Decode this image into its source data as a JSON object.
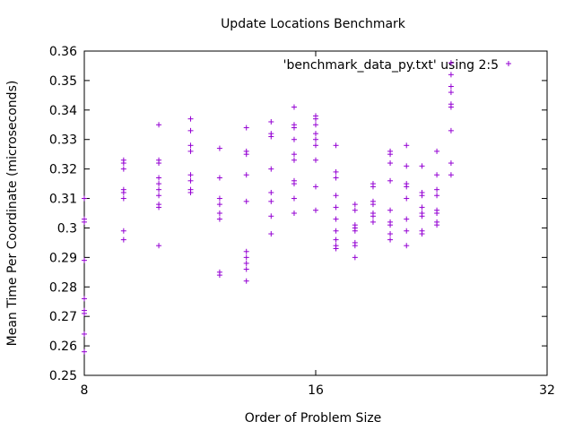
{
  "chart_data": {
    "type": "scatter",
    "title": "Update Locations Benchmark",
    "xlabel": "Order of Problem Size",
    "ylabel": "Mean Time Per Coordinate (microseconds)",
    "x_scale": "log2",
    "xlim": [
      8,
      32
    ],
    "ylim": [
      0.25,
      0.36
    ],
    "x_ticks": [
      8,
      16,
      32
    ],
    "x_tick_labels": [
      "8",
      "16",
      "32"
    ],
    "y_ticks": [
      0.25,
      0.26,
      0.27,
      0.28,
      0.29,
      0.3,
      0.31,
      0.32,
      0.33,
      0.34,
      0.35,
      0.36
    ],
    "y_tick_labels": [
      "0.25",
      "0.26",
      "0.27",
      "0.28",
      "0.29",
      "0.3",
      "0.31",
      "0.32",
      "0.33",
      "0.34",
      "0.35",
      "0.36"
    ],
    "grid": false,
    "legend_position": "top-right",
    "series": [
      {
        "name": "'benchmark_data_py.txt' using 2:5",
        "color": "#9400d3",
        "marker": "plus",
        "points": [
          [
            8,
            0.31
          ],
          [
            8,
            0.303
          ],
          [
            8,
            0.302
          ],
          [
            8,
            0.289
          ],
          [
            8,
            0.276
          ],
          [
            8,
            0.272
          ],
          [
            8,
            0.271
          ],
          [
            8,
            0.264
          ],
          [
            8,
            0.258
          ],
          [
            9,
            0.323
          ],
          [
            9,
            0.322
          ],
          [
            9,
            0.32
          ],
          [
            9,
            0.313
          ],
          [
            9,
            0.312
          ],
          [
            9,
            0.31
          ],
          [
            9,
            0.299
          ],
          [
            9,
            0.296
          ],
          [
            10,
            0.335
          ],
          [
            10,
            0.323
          ],
          [
            10,
            0.322
          ],
          [
            10,
            0.317
          ],
          [
            10,
            0.315
          ],
          [
            10,
            0.313
          ],
          [
            10,
            0.311
          ],
          [
            10,
            0.308
          ],
          [
            10,
            0.307
          ],
          [
            10,
            0.294
          ],
          [
            11,
            0.337
          ],
          [
            11,
            0.333
          ],
          [
            11,
            0.328
          ],
          [
            11,
            0.326
          ],
          [
            11,
            0.318
          ],
          [
            11,
            0.316
          ],
          [
            11,
            0.313
          ],
          [
            11,
            0.312
          ],
          [
            12,
            0.327
          ],
          [
            12,
            0.317
          ],
          [
            12,
            0.31
          ],
          [
            12,
            0.308
          ],
          [
            12,
            0.305
          ],
          [
            12,
            0.303
          ],
          [
            12,
            0.285
          ],
          [
            12,
            0.284
          ],
          [
            13,
            0.334
          ],
          [
            13,
            0.326
          ],
          [
            13,
            0.325
          ],
          [
            13,
            0.318
          ],
          [
            13,
            0.309
          ],
          [
            13,
            0.292
          ],
          [
            13,
            0.29
          ],
          [
            13,
            0.288
          ],
          [
            13,
            0.286
          ],
          [
            13,
            0.282
          ],
          [
            14,
            0.336
          ],
          [
            14,
            0.332
          ],
          [
            14,
            0.331
          ],
          [
            14,
            0.32
          ],
          [
            14,
            0.312
          ],
          [
            14,
            0.309
          ],
          [
            14,
            0.304
          ],
          [
            14,
            0.298
          ],
          [
            15,
            0.341
          ],
          [
            15,
            0.335
          ],
          [
            15,
            0.334
          ],
          [
            15,
            0.33
          ],
          [
            15,
            0.325
          ],
          [
            15,
            0.323
          ],
          [
            15,
            0.316
          ],
          [
            15,
            0.315
          ],
          [
            15,
            0.31
          ],
          [
            15,
            0.305
          ],
          [
            16,
            0.338
          ],
          [
            16,
            0.337
          ],
          [
            16,
            0.335
          ],
          [
            16,
            0.332
          ],
          [
            16,
            0.33
          ],
          [
            16,
            0.328
          ],
          [
            16,
            0.323
          ],
          [
            16,
            0.314
          ],
          [
            16,
            0.306
          ],
          [
            17,
            0.328
          ],
          [
            17,
            0.319
          ],
          [
            17,
            0.317
          ],
          [
            17,
            0.311
          ],
          [
            17,
            0.307
          ],
          [
            17,
            0.303
          ],
          [
            17,
            0.299
          ],
          [
            17,
            0.296
          ],
          [
            17,
            0.294
          ],
          [
            17,
            0.293
          ],
          [
            18,
            0.308
          ],
          [
            18,
            0.306
          ],
          [
            18,
            0.301
          ],
          [
            18,
            0.3
          ],
          [
            18,
            0.299
          ],
          [
            18,
            0.295
          ],
          [
            18,
            0.294
          ],
          [
            18,
            0.29
          ],
          [
            19,
            0.315
          ],
          [
            19,
            0.314
          ],
          [
            19,
            0.309
          ],
          [
            19,
            0.308
          ],
          [
            19,
            0.305
          ],
          [
            19,
            0.304
          ],
          [
            19,
            0.302
          ],
          [
            20,
            0.326
          ],
          [
            20,
            0.325
          ],
          [
            20,
            0.322
          ],
          [
            20,
            0.316
          ],
          [
            20,
            0.306
          ],
          [
            20,
            0.302
          ],
          [
            20,
            0.301
          ],
          [
            20,
            0.298
          ],
          [
            20,
            0.296
          ],
          [
            21,
            0.328
          ],
          [
            21,
            0.321
          ],
          [
            21,
            0.315
          ],
          [
            21,
            0.314
          ],
          [
            21,
            0.31
          ],
          [
            21,
            0.303
          ],
          [
            21,
            0.299
          ],
          [
            21,
            0.294
          ],
          [
            22,
            0.321
          ],
          [
            22,
            0.312
          ],
          [
            22,
            0.311
          ],
          [
            22,
            0.307
          ],
          [
            22,
            0.305
          ],
          [
            22,
            0.304
          ],
          [
            22,
            0.299
          ],
          [
            22,
            0.298
          ],
          [
            23,
            0.326
          ],
          [
            23,
            0.318
          ],
          [
            23,
            0.313
          ],
          [
            23,
            0.311
          ],
          [
            23,
            0.306
          ],
          [
            23,
            0.305
          ],
          [
            23,
            0.302
          ],
          [
            23,
            0.301
          ],
          [
            24,
            0.356
          ],
          [
            24,
            0.352
          ],
          [
            24,
            0.348
          ],
          [
            24,
            0.346
          ],
          [
            24,
            0.342
          ],
          [
            24,
            0.341
          ],
          [
            24,
            0.333
          ],
          [
            24,
            0.322
          ],
          [
            24,
            0.318
          ]
        ]
      }
    ]
  }
}
